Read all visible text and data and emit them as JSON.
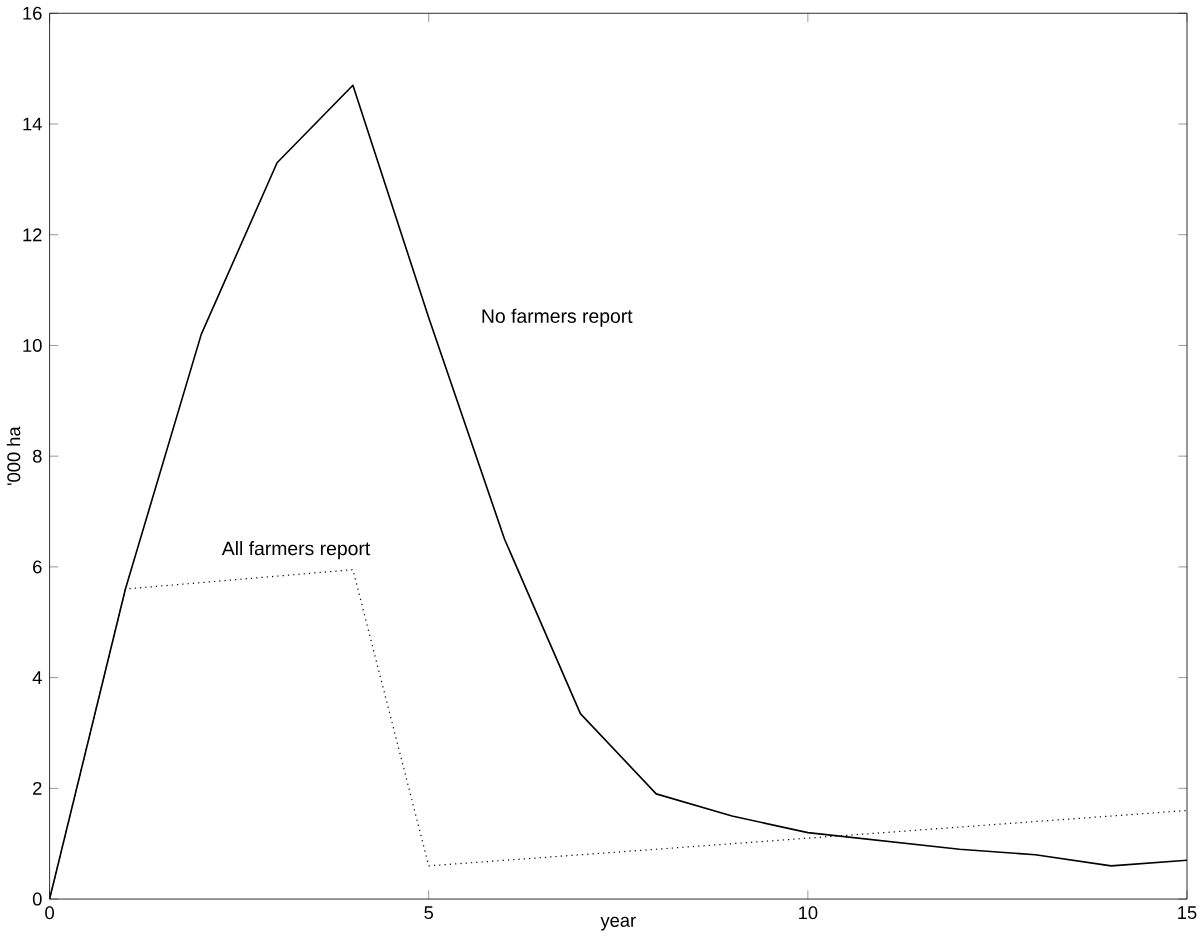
{
  "chart_data": {
    "type": "line",
    "xlabel": "year",
    "ylabel": "'000 ha",
    "xlim": [
      0,
      15
    ],
    "ylim": [
      0,
      16
    ],
    "xticks": [
      0,
      5,
      10,
      15
    ],
    "yticks": [
      0,
      2,
      4,
      6,
      8,
      10,
      12,
      14,
      16
    ],
    "grid": false,
    "marker": "none",
    "series": [
      {
        "name": "No farmers report",
        "color": "#000000",
        "line_style": "solid",
        "x": [
          0,
          1,
          2,
          3,
          4,
          5,
          6,
          7,
          8,
          9,
          10,
          11,
          12,
          13,
          14,
          15
        ],
        "values": [
          0,
          5.6,
          10.2,
          13.3,
          14.7,
          10.5,
          6.5,
          3.35,
          1.9,
          1.5,
          1.2,
          1.05,
          0.9,
          0.8,
          0.6,
          0.7
        ]
      },
      {
        "name": "All farmers report",
        "color": "#000000",
        "line_style": "dotted",
        "x": [
          0,
          1,
          4,
          5,
          15
        ],
        "values": [
          0,
          5.6,
          5.95,
          0.6,
          1.6
        ]
      }
    ]
  }
}
